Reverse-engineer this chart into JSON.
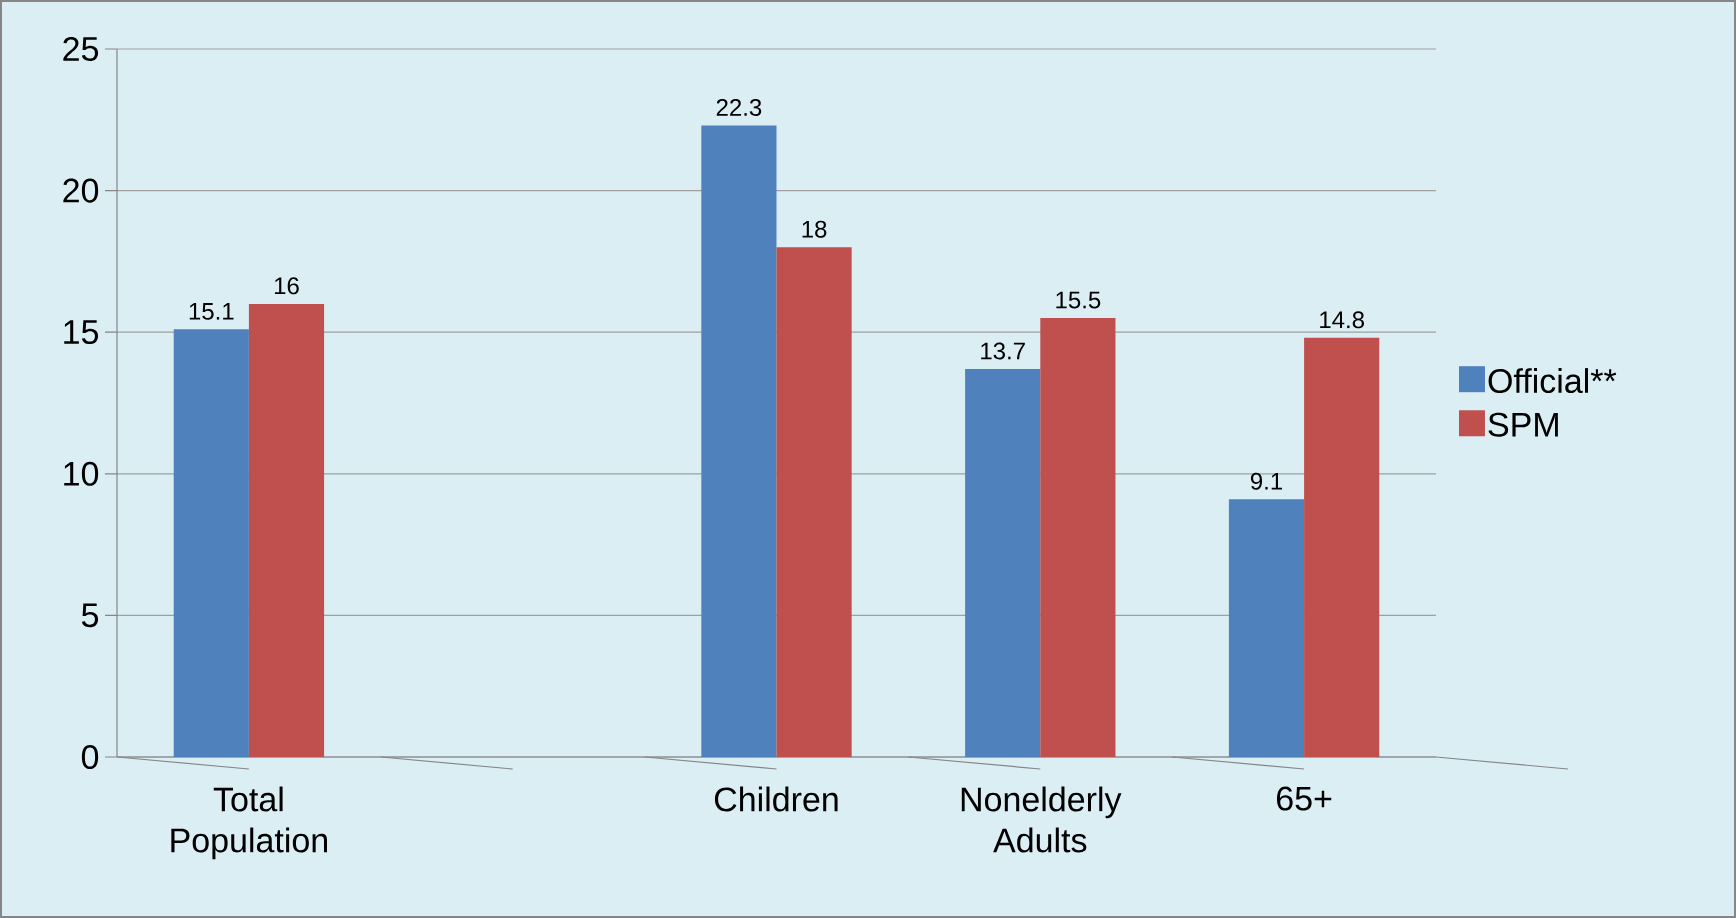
{
  "chart_data": {
    "type": "bar",
    "categories": [
      "Total Population",
      null,
      "Children",
      "Nonelderly Adults",
      "65+"
    ],
    "series": [
      {
        "name": "Official**",
        "color": "#4f81bd",
        "values": [
          15.1,
          null,
          22.3,
          13.7,
          9.1
        ]
      },
      {
        "name": "SPM",
        "color": "#c0504d",
        "values": [
          16,
          null,
          18,
          15.5,
          14.8
        ]
      }
    ],
    "ylim": [
      0,
      25
    ],
    "yticks": [
      0,
      5,
      10,
      15,
      20,
      25
    ],
    "grid": "y",
    "legend": "right",
    "data_labels": true
  }
}
